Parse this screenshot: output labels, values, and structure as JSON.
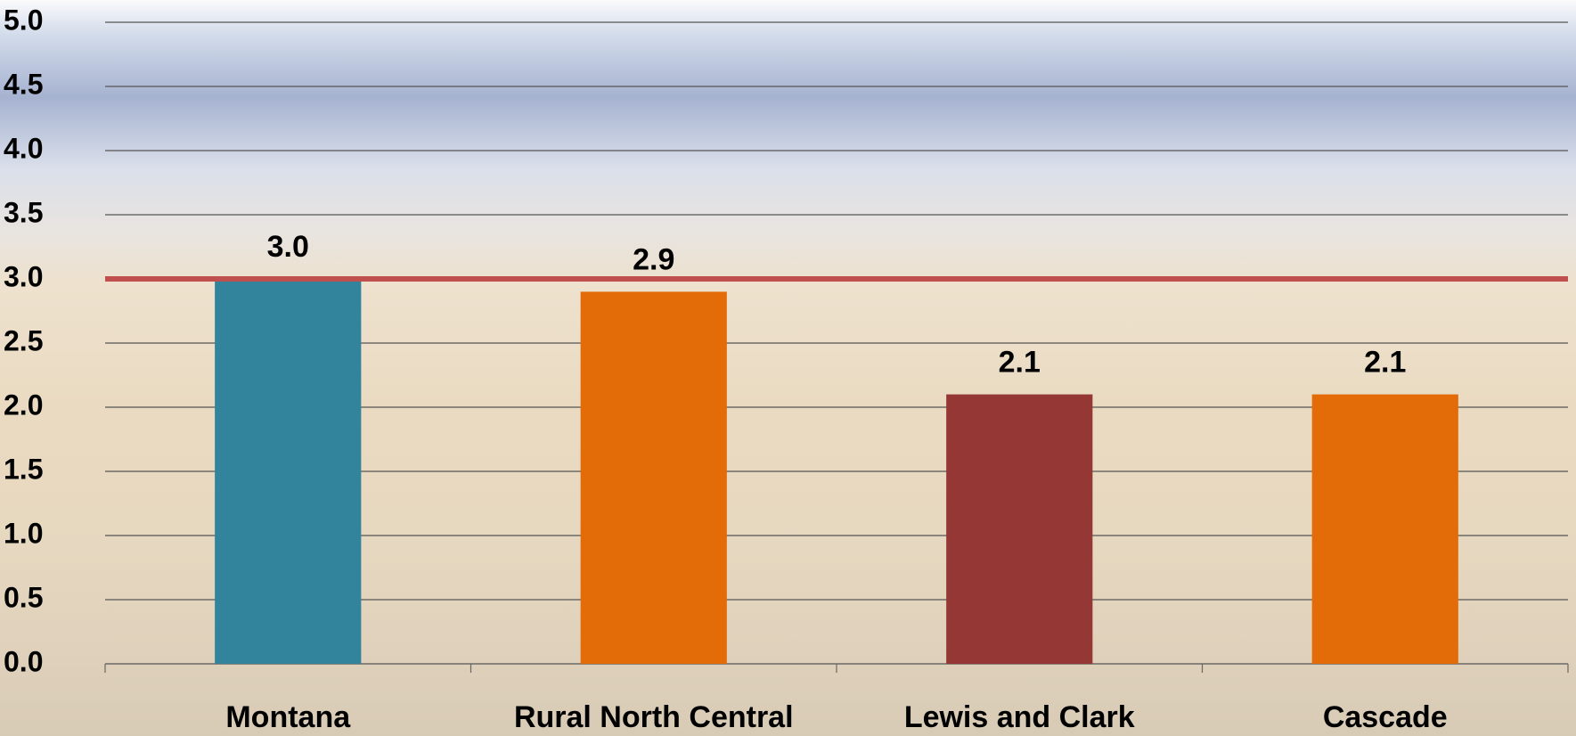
{
  "chart_data": {
    "type": "bar",
    "categories": [
      "Montana",
      "Rural North Central",
      "Lewis and Clark",
      "Cascade"
    ],
    "values": [
      3.0,
      2.9,
      2.1,
      2.1
    ],
    "value_labels": [
      "3.0",
      "2.9",
      "2.1",
      "2.1"
    ],
    "colors": [
      "#31849b",
      "#e36c09",
      "#953735",
      "#e36c09"
    ],
    "ylim": [
      0,
      5
    ],
    "yticks": [
      {
        "value": 0,
        "label": "0.0"
      },
      0.5,
      {
        "value": 1,
        "label": "1.0"
      },
      1.5,
      {
        "value": 2,
        "label": "2.0"
      },
      2.5,
      {
        "value": 3,
        "label": "3.0"
      },
      3.5,
      {
        "value": 4,
        "label": "4.0"
      },
      4.5,
      {
        "value": 5,
        "label": "5.0"
      }
    ],
    "grid": true,
    "reference_line": {
      "value": 3,
      "color": "#c0504d"
    }
  }
}
